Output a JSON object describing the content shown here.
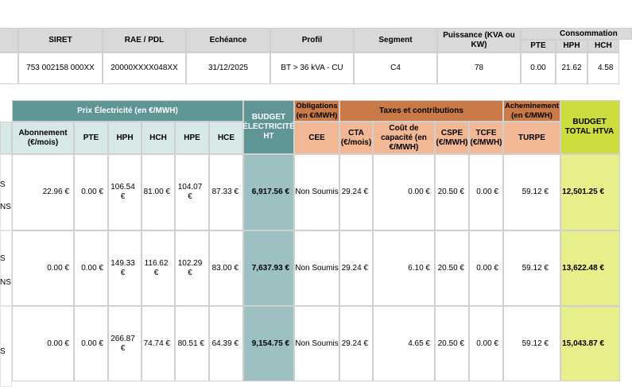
{
  "top_table": {
    "headers": {
      "siret": "SIRET",
      "rae_pdl": "RAE / PDL",
      "echeance": "Echéance",
      "profil": "Profil",
      "segment": "Segment",
      "puissance": "Puissance (KVA ou KW)",
      "consommation": "Consommation",
      "pte": "PTE",
      "hph": "HPH",
      "hch": "HCH"
    },
    "row": {
      "siret": "753 002158 000XX",
      "rae_pdl": "20000XXXX048XX",
      "echeance": "31/12/2025",
      "profil": "BT > 36 kVA - CU",
      "segment": "C4",
      "puissance": "78",
      "pte": "0.00",
      "hph": "21.62",
      "hch": "4.58"
    }
  },
  "price_table": {
    "group_headers": {
      "prix": "Prix Électricité (en €/MWH)",
      "budget_elec": "BUDGET ÉLECTRICITÉ HT",
      "obligations": "Obligations (en €/MWH)",
      "taxes": "Taxes et contributions",
      "acheminement": "Acheminement (en €/MWH)",
      "budget_total": "BUDGET TOTAL HTVA"
    },
    "sub_headers": {
      "abonnement": "Abonnement (€/mois)",
      "pte": "PTE",
      "hph": "HPH",
      "hch": "HCH",
      "hpe": "HPE",
      "hce": "HCE",
      "cee": "CEE",
      "cta": "CTA (€/mois)",
      "capacite": "Coût de capacité (en €/MWH)",
      "cspe": "CSPE (€/MWH)",
      "tcfe": "TCFE (€/MWH)",
      "turpe": "TURPE"
    },
    "left_fragments": [
      "S",
      "NS",
      "S",
      "NS",
      "S"
    ],
    "rows": [
      {
        "abonnement": "22.96 €",
        "pte": "0.00 €",
        "hph": "106.54 €",
        "hch": "81.00 €",
        "hpe": "104.07 €",
        "hce": "87.33 €",
        "budget_elec": "6,917.56 €",
        "cee": "Non Soumis",
        "cta": "29.24 €",
        "capacite": "0.00 €",
        "cspe": "20.50 €",
        "tcfe": "0.00 €",
        "turpe": "59.12 €",
        "budget_total": "12,501.25 €"
      },
      {
        "abonnement": "0.00 €",
        "pte": "0.00 €",
        "hph": "149.33 €",
        "hch": "116.62 €",
        "hpe": "102.29 €",
        "hce": "83.00 €",
        "budget_elec": "7,637.93 €",
        "cee": "Non Soumis",
        "cta": "29.24 €",
        "capacite": "6.10 €",
        "cspe": "20.50 €",
        "tcfe": "0.00 €",
        "turpe": "59.12 €",
        "budget_total": "13,622.48 €"
      },
      {
        "abonnement": "0.00 €",
        "pte": "0.00 €",
        "hph": "266.87 €",
        "hch": "74.74 €",
        "hpe": "80.51 €",
        "hce": "64.39 €",
        "budget_elec": "9,154.75 €",
        "cee": "Non Soumis",
        "cta": "29.24 €",
        "capacite": "4.65 €",
        "cspe": "20.50 €",
        "tcfe": "0.00 €",
        "turpe": "59.12 €",
        "budget_total": "15,043.87 €"
      }
    ]
  }
}
